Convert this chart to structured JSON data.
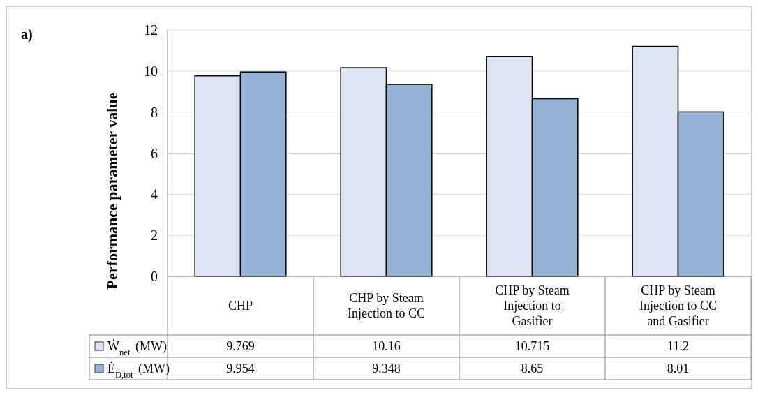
{
  "chart_data": {
    "type": "bar",
    "ylabel": "Performance parameter value",
    "annotations": [
      "a)"
    ],
    "categories": [
      "CHP",
      "CHP by Steam Injection to CC",
      "CHP by Steam Injection to Gasifier",
      "CHP by Steam Injection to CC and Gasifier"
    ],
    "series": [
      {
        "name": "Ẇ$_{net}$ (MW)",
        "color": "#dce3f2",
        "values": [
          9.769,
          10.16,
          10.715,
          11.2
        ]
      },
      {
        "name": "Ė$_{D,tot}$ (MW)",
        "color": "#95b3d7",
        "values": [
          9.954,
          9.348,
          8.65,
          8.01
        ]
      }
    ],
    "ylim": [
      0,
      12
    ],
    "yticks": [
      0,
      2,
      4,
      6,
      8,
      10,
      12
    ],
    "grid": "y",
    "data_labels": true,
    "legend": "bottom left"
  }
}
